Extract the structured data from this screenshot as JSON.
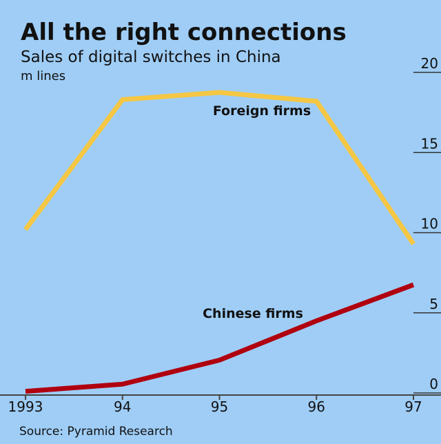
{
  "chart_data": {
    "type": "line",
    "title": "All the right connections",
    "subtitle": "Sales of digital switches in China",
    "y_label": "m lines",
    "source": "Source: Pyramid Research",
    "categories": [
      "1993",
      "94",
      "95",
      "96",
      "97"
    ],
    "series": [
      {
        "name": "Foreign firms",
        "color": "#f5c744",
        "values": [
          10.2,
          18.3,
          18.75,
          18.2,
          9.3
        ]
      },
      {
        "name": "Chinese firms",
        "color": "#b0000f",
        "values": [
          0.1,
          0.55,
          2.05,
          4.5,
          6.75
        ]
      }
    ],
    "ylim": [
      0,
      20
    ],
    "yticks": [
      0,
      5,
      10,
      15,
      20
    ]
  }
}
